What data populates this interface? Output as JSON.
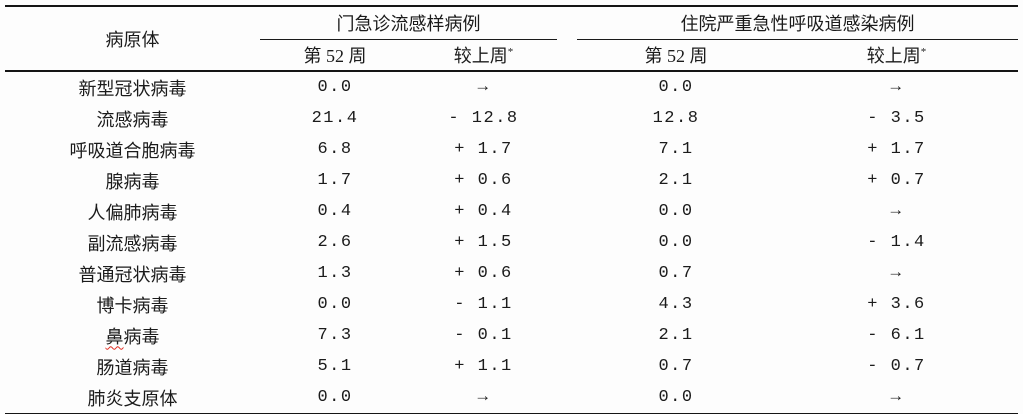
{
  "table": {
    "pathogen_header": "病原体",
    "groups": [
      {
        "label": "门急诊流感样病例"
      },
      {
        "label": "住院严重急性呼吸道感染病例"
      }
    ],
    "subheaders": {
      "week": "第 52 周",
      "change": "较上周",
      "change_sup": "*"
    },
    "spellcheck_marked_char": "鼻",
    "rows": [
      {
        "pathogen": "新型冠状病毒",
        "ili_week52": "0.0",
        "ili_change": "→",
        "sari_week52": "0.0",
        "sari_change": "→"
      },
      {
        "pathogen": "流感病毒",
        "ili_week52": "21.4",
        "ili_change": "- 12.8",
        "sari_week52": "12.8",
        "sari_change": "- 3.5"
      },
      {
        "pathogen": "呼吸道合胞病毒",
        "ili_week52": "6.8",
        "ili_change": "+ 1.7",
        "sari_week52": "7.1",
        "sari_change": "+ 1.7"
      },
      {
        "pathogen": "腺病毒",
        "ili_week52": "1.7",
        "ili_change": "+ 0.6",
        "sari_week52": "2.1",
        "sari_change": "+ 0.7"
      },
      {
        "pathogen": "人偏肺病毒",
        "ili_week52": "0.4",
        "ili_change": "+ 0.4",
        "sari_week52": "0.0",
        "sari_change": "→"
      },
      {
        "pathogen": "副流感病毒",
        "ili_week52": "2.6",
        "ili_change": "+ 1.5",
        "sari_week52": "0.0",
        "sari_change": "- 1.4"
      },
      {
        "pathogen": "普通冠状病毒",
        "ili_week52": "1.3",
        "ili_change": "+ 0.6",
        "sari_week52": "0.7",
        "sari_change": "→"
      },
      {
        "pathogen": "博卡病毒",
        "ili_week52": "0.0",
        "ili_change": "- 1.1",
        "sari_week52": "4.3",
        "sari_change": "+ 3.6"
      },
      {
        "pathogen": "鼻病毒",
        "ili_week52": "7.3",
        "ili_change": "- 0.1",
        "sari_week52": "2.1",
        "sari_change": "- 6.1"
      },
      {
        "pathogen": "肠道病毒",
        "ili_week52": "5.1",
        "ili_change": "+ 1.1",
        "sari_week52": "0.7",
        "sari_change": "- 0.7"
      },
      {
        "pathogen": "肺炎支原体",
        "ili_week52": "0.0",
        "ili_change": "→",
        "sari_week52": "0.0",
        "sari_change": "→"
      }
    ]
  },
  "colors": {
    "text": "#1b1b1b",
    "rule_line": "#151515",
    "spellcheck_underline": "#e02b20",
    "background": "#fdfdfd"
  }
}
